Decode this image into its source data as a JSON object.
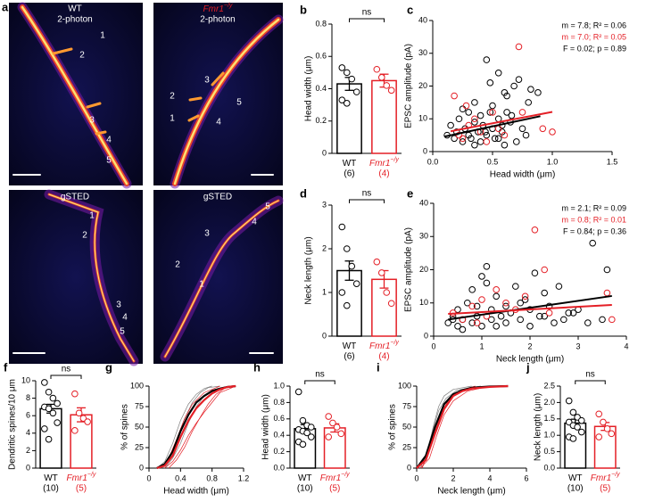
{
  "panel_a": {
    "label": "a",
    "genotypes": [
      {
        "name": "WT"
      },
      {
        "name": "Fmr1",
        "superscript": "−/y"
      }
    ],
    "images": [
      {
        "method": "2-photon",
        "spine_labels": [
          "1",
          "2",
          "3",
          "4",
          "5"
        ]
      },
      {
        "method": "2-photon",
        "spine_labels": [
          "1",
          "2",
          "3",
          "4",
          "5"
        ]
      },
      {
        "method": "gSTED",
        "spine_labels": [
          "1",
          "2",
          "3",
          "4",
          "5"
        ]
      },
      {
        "method": "gSTED",
        "spine_labels": [
          "1",
          "2",
          "3",
          "4",
          "5"
        ]
      }
    ]
  },
  "chart_data": [
    {
      "type": "bar",
      "panel": "b",
      "ylabel": "Head width (μm)",
      "ylim": [
        0,
        0.8
      ],
      "yticks": [
        0,
        0.2,
        0.4,
        0.6,
        0.8
      ],
      "categories": [
        {
          "name": "WT"
        },
        {
          "name": "Fmr1",
          "superscript": "−/y"
        }
      ],
      "n_labels": [
        "(6)",
        "(4)"
      ],
      "values": [
        0.43,
        0.45
      ],
      "errors": [
        0.04,
        0.04
      ],
      "points": [
        [
          0.53,
          0.5,
          0.46,
          0.38,
          0.33,
          0.31
        ],
        [
          0.52,
          0.47,
          0.42,
          0.39
        ]
      ],
      "colors": [
        "#000000",
        "#e41f26"
      ],
      "annotation": "ns"
    },
    {
      "type": "scatter",
      "panel": "c",
      "xlabel": "Head width (μm)",
      "ylabel": "EPSC amplitude (pA)",
      "xlim": [
        0,
        1.5
      ],
      "xticks": [
        {
          "value": 0,
          "label": "0.0"
        },
        0.5,
        {
          "value": 1,
          "label": "1.0"
        },
        1.5
      ],
      "ylim": [
        0,
        40
      ],
      "yticks": [
        0,
        10,
        20,
        30,
        40
      ],
      "series": [
        {
          "color": "#000000",
          "x": [
            0.12,
            0.15,
            0.18,
            0.2,
            0.22,
            0.25,
            0.27,
            0.3,
            0.3,
            0.32,
            0.35,
            0.35,
            0.38,
            0.4,
            0.4,
            0.42,
            0.45,
            0.45,
            0.48,
            0.5,
            0.5,
            0.52,
            0.55,
            0.55,
            0.58,
            0.6,
            0.6,
            0.62,
            0.65,
            0.68,
            0.7,
            0.72,
            0.75,
            0.78,
            0.8,
            0.82,
            0.88,
            0.55,
            0.48,
            0.62,
            0.35,
            0.25,
            0.44,
            0.58,
            0.66
          ],
          "values": [
            5,
            8,
            4,
            6,
            10,
            3,
            7,
            12,
            5,
            4,
            9,
            15,
            6,
            3,
            11,
            8,
            28,
            5,
            21,
            7,
            14,
            4,
            24,
            10,
            6,
            2,
            18,
            12,
            9,
            20,
            3,
            22,
            7,
            5,
            15,
            19,
            18,
            4,
            12,
            17,
            2,
            13,
            6,
            8,
            11
          ]
        },
        {
          "color": "#e41f26",
          "x": [
            0.18,
            0.22,
            0.25,
            0.3,
            0.35,
            0.4,
            0.45,
            0.5,
            0.55,
            0.6,
            0.72,
            0.75,
            0.92,
            1.0,
            0.28
          ],
          "values": [
            17,
            5,
            4,
            8,
            10,
            6,
            3,
            12,
            7,
            5,
            32,
            12,
            7,
            6,
            14
          ]
        }
      ],
      "fits": [
        {
          "color": "#000000",
          "x": [
            0.1,
            0.9
          ],
          "values": [
            4.6,
            10.8
          ]
        },
        {
          "color": "#e41f26",
          "x": [
            0.15,
            1.0
          ],
          "values": [
            6.2,
            12.1
          ]
        }
      ],
      "annotations": [
        {
          "text": "m = 7.8; R² = 0.06",
          "color": "#000000"
        },
        {
          "text": "m = 7.0; R² = 0.05",
          "color": "#e41f26"
        },
        {
          "text": "F = 0.02; p = 0.89",
          "color": "#000000"
        }
      ]
    },
    {
      "type": "bar",
      "panel": "d",
      "ylabel": "Neck length (μm)",
      "ylim": [
        0,
        3
      ],
      "yticks": [
        0,
        1,
        2,
        3
      ],
      "categories": [
        {
          "name": "WT"
        },
        {
          "name": "Fmr1",
          "superscript": "−/y"
        }
      ],
      "n_labels": [
        "(6)",
        "(4)"
      ],
      "values": [
        1.5,
        1.3
      ],
      "errors": [
        0.22,
        0.2
      ],
      "points": [
        [
          2.5,
          2.0,
          1.6,
          1.2,
          1.0,
          0.7
        ],
        [
          1.7,
          1.45,
          1.0,
          0.75
        ]
      ],
      "colors": [
        "#000000",
        "#e41f26"
      ],
      "annotation": "ns"
    },
    {
      "type": "scatter",
      "panel": "e",
      "xlabel": "Neck length (μm)",
      "ylabel": "EPSC amplitude (pA)",
      "xlim": [
        0,
        4
      ],
      "xticks": [
        0,
        1,
        2,
        3,
        4
      ],
      "ylim": [
        0,
        40
      ],
      "yticks": [
        0,
        10,
        20,
        30,
        40
      ],
      "series": [
        {
          "color": "#000000",
          "x": [
            0.3,
            0.4,
            0.5,
            0.5,
            0.6,
            0.7,
            0.8,
            0.8,
            0.9,
            1.0,
            1.0,
            1.1,
            1.2,
            1.2,
            1.3,
            1.4,
            1.5,
            1.5,
            1.6,
            1.7,
            1.8,
            1.9,
            2.0,
            2.0,
            2.1,
            2.2,
            2.3,
            2.4,
            2.5,
            2.6,
            2.7,
            2.8,
            3.0,
            3.2,
            3.5,
            3.6,
            0.6,
            1.1,
            1.8,
            2.3,
            0.9,
            1.3,
            2.9,
            3.3,
            0.4
          ],
          "values": [
            4,
            6,
            3,
            8,
            5,
            10,
            4,
            14,
            6,
            18,
            3,
            21,
            8,
            5,
            12,
            6,
            4,
            9,
            7,
            15,
            5,
            11,
            3,
            8,
            19,
            6,
            13,
            9,
            4,
            15,
            5,
            7,
            8,
            4,
            5,
            20,
            2,
            16,
            10,
            6,
            9,
            3,
            7,
            28,
            5
          ]
        },
        {
          "color": "#e41f26",
          "x": [
            0.4,
            0.6,
            0.8,
            1.0,
            1.1,
            1.3,
            1.5,
            1.7,
            1.9,
            2.1,
            2.3,
            2.4,
            3.6,
            3.7,
            0.9
          ],
          "values": [
            7,
            5,
            9,
            11,
            6,
            14,
            10,
            8,
            12,
            32,
            20,
            7,
            13,
            5,
            4
          ]
        }
      ],
      "fits": [
        {
          "color": "#000000",
          "x": [
            0.3,
            3.7
          ],
          "values": [
            5.0,
            12.1
          ]
        },
        {
          "color": "#e41f26",
          "x": [
            0.3,
            3.7
          ],
          "values": [
            6.7,
            9.4
          ]
        }
      ],
      "annotations": [
        {
          "text": "m = 2.1; R² = 0.09",
          "color": "#000000"
        },
        {
          "text": "m = 0.8; R² = 0.01",
          "color": "#e41f26"
        },
        {
          "text": "F = 0.84; p = 0.36",
          "color": "#000000"
        }
      ]
    },
    {
      "type": "bar",
      "panel": "f",
      "ylabel": "Dendritic spines/10 μm",
      "ylim": [
        0,
        10
      ],
      "yticks": [
        0,
        2,
        4,
        6,
        8,
        10
      ],
      "categories": [
        {
          "name": "WT"
        },
        {
          "name": "Fmr1",
          "superscript": "−/y"
        }
      ],
      "n_labels": [
        "(10)",
        "(5)"
      ],
      "values": [
        6.8,
        6.1
      ],
      "errors": [
        0.5,
        0.8
      ],
      "points": [
        [
          9.8,
          8.7,
          8.0,
          7.4,
          7.0,
          6.8,
          6.3,
          5.2,
          4.5,
          3.3
        ],
        [
          8.5,
          6.3,
          5.7,
          5.3,
          4.3
        ]
      ],
      "colors": [
        "#000000",
        "#e41f26"
      ],
      "annotation": "ns"
    },
    {
      "type": "line",
      "panel": "g",
      "xlabel": "Head width (μm)",
      "ylabel": "% of spines",
      "xlim": [
        0,
        1.2
      ],
      "xticks": [
        0,
        0.4,
        0.8,
        1.2
      ],
      "ylim": [
        0,
        100
      ],
      "yticks": [
        0,
        25,
        50,
        75,
        100
      ],
      "series": [
        {
          "color": "#808080",
          "width": 0.7,
          "x": [
            0.15,
            0.25,
            0.35,
            0.45,
            0.55,
            0.65,
            0.75,
            0.9
          ],
          "values": [
            0,
            10,
            35,
            60,
            80,
            92,
            98,
            100
          ]
        },
        {
          "color": "#808080",
          "width": 0.7,
          "x": [
            0.2,
            0.3,
            0.4,
            0.5,
            0.6,
            0.7,
            0.8,
            1.0
          ],
          "values": [
            0,
            12,
            30,
            55,
            75,
            88,
            95,
            100
          ]
        },
        {
          "color": "#808080",
          "width": 0.7,
          "x": [
            0.1,
            0.2,
            0.3,
            0.4,
            0.5,
            0.6,
            0.7,
            0.8
          ],
          "values": [
            0,
            8,
            30,
            58,
            78,
            90,
            97,
            100
          ]
        },
        {
          "color": "#e41f26",
          "width": 0.7,
          "x": [
            0.2,
            0.3,
            0.4,
            0.5,
            0.6,
            0.7,
            0.8,
            0.9,
            1.1
          ],
          "values": [
            0,
            8,
            22,
            40,
            55,
            68,
            80,
            92,
            100
          ]
        },
        {
          "color": "#e41f26",
          "width": 0.7,
          "x": [
            0.25,
            0.35,
            0.45,
            0.55,
            0.65,
            0.75,
            0.85,
            1.0
          ],
          "values": [
            0,
            10,
            25,
            45,
            62,
            78,
            90,
            100
          ]
        },
        {
          "color": "#e41f26",
          "width": 0.7,
          "x": [
            0.15,
            0.25,
            0.35,
            0.45,
            0.55,
            0.7,
            0.9
          ],
          "values": [
            0,
            12,
            35,
            60,
            78,
            92,
            100
          ]
        },
        {
          "color": "#000000",
          "width": 2.2,
          "x": [
            0.1,
            0.2,
            0.3,
            0.4,
            0.5,
            0.6,
            0.7,
            0.8,
            0.9,
            1.0,
            1.1
          ],
          "values": [
            0,
            5,
            20,
            45,
            65,
            80,
            88,
            94,
            97,
            99,
            100
          ]
        },
        {
          "color": "#e41f26",
          "width": 2.2,
          "x": [
            0.1,
            0.2,
            0.3,
            0.4,
            0.5,
            0.6,
            0.7,
            0.8,
            0.9,
            1.0,
            1.1
          ],
          "values": [
            0,
            3,
            15,
            38,
            58,
            73,
            83,
            91,
            96,
            99,
            100
          ]
        }
      ]
    },
    {
      "type": "bar",
      "panel": "h",
      "ylabel": "Head width (μm)",
      "ylim": [
        0,
        1
      ],
      "yticks": [
        {
          "value": 0,
          "label": "0.0"
        },
        0.2,
        0.4,
        0.6,
        0.8,
        {
          "value": 1,
          "label": "1.0"
        }
      ],
      "categories": [
        {
          "name": "WT"
        },
        {
          "name": "Fmr1",
          "superscript": "−/y"
        }
      ],
      "n_labels": [
        "(10)",
        "(5)"
      ],
      "values": [
        0.48,
        0.49
      ],
      "errors": [
        0.05,
        0.05
      ],
      "points": [
        [
          0.93,
          0.58,
          0.52,
          0.5,
          0.47,
          0.45,
          0.43,
          0.38,
          0.32,
          0.29
        ],
        [
          0.63,
          0.55,
          0.5,
          0.42,
          0.38
        ]
      ],
      "colors": [
        "#000000",
        "#e41f26"
      ],
      "annotation": "ns"
    },
    {
      "type": "line",
      "panel": "i",
      "xlabel": "Neck length (μm)",
      "ylabel": "% of spines",
      "xlim": [
        0,
        6
      ],
      "xticks": [
        0,
        2,
        4,
        6
      ],
      "ylim": [
        0,
        100
      ],
      "yticks": [
        0,
        25,
        50,
        75,
        100
      ],
      "series": [
        {
          "color": "#808080",
          "width": 0.7,
          "x": [
            0.3,
            0.6,
            0.9,
            1.2,
            1.5,
            2.0,
            3.0
          ],
          "values": [
            0,
            20,
            50,
            75,
            88,
            96,
            100
          ]
        },
        {
          "color": "#808080",
          "width": 0.7,
          "x": [
            0.2,
            0.5,
            0.8,
            1.2,
            1.6,
            2.2,
            3.5
          ],
          "values": [
            0,
            15,
            40,
            70,
            85,
            95,
            100
          ]
        },
        {
          "color": "#e41f26",
          "width": 0.7,
          "x": [
            0.3,
            0.6,
            1.0,
            1.4,
            1.8,
            2.5,
            3.2
          ],
          "values": [
            0,
            18,
            45,
            70,
            85,
            95,
            100
          ]
        },
        {
          "color": "#e41f26",
          "width": 0.7,
          "x": [
            0.2,
            0.7,
            1.1,
            1.5,
            2.0,
            2.8,
            4.0
          ],
          "values": [
            0,
            12,
            40,
            65,
            82,
            94,
            100
          ]
        },
        {
          "color": "#000000",
          "width": 2.2,
          "x": [
            0,
            0.5,
            1,
            1.5,
            2,
            2.5,
            3,
            4,
            5
          ],
          "values": [
            0,
            15,
            50,
            78,
            90,
            95,
            98,
            99.5,
            100
          ]
        },
        {
          "color": "#e41f26",
          "width": 2.2,
          "x": [
            0,
            0.5,
            1,
            1.5,
            2,
            2.5,
            3,
            4,
            5
          ],
          "values": [
            0,
            10,
            42,
            72,
            88,
            94,
            97,
            99,
            100
          ]
        }
      ]
    },
    {
      "type": "bar",
      "panel": "j",
      "ylabel": "Neck length (μm)",
      "ylim": [
        0,
        2.5
      ],
      "yticks": [
        {
          "value": 0,
          "label": "0.0"
        },
        0.5,
        {
          "value": 1,
          "label": "1.0"
        },
        1.5,
        {
          "value": 2,
          "label": "2.0"
        },
        2.5
      ],
      "categories": [
        {
          "name": "WT"
        },
        {
          "name": "Fmr1",
          "superscript": "−/y"
        }
      ],
      "n_labels": [
        "(10)",
        "(5)"
      ],
      "values": [
        1.37,
        1.27
      ],
      "errors": [
        0.12,
        0.12
      ],
      "points": [
        [
          2.05,
          1.7,
          1.55,
          1.45,
          1.4,
          1.3,
          1.25,
          1.1,
          0.95,
          0.9
        ],
        [
          1.65,
          1.4,
          1.2,
          1.05,
          0.95
        ]
      ],
      "colors": [
        "#000000",
        "#e41f26"
      ],
      "annotation": "ns"
    }
  ]
}
